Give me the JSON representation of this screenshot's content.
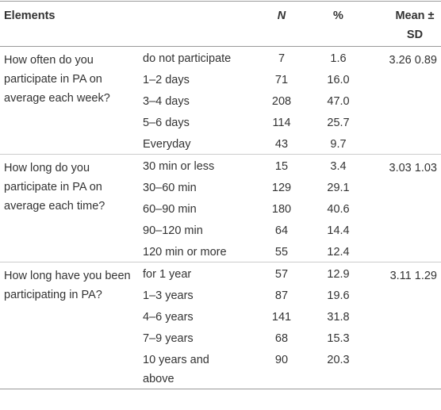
{
  "header": {
    "elements": "Elements",
    "n": "N",
    "percent": "%",
    "mean_sd": "Mean ± SD"
  },
  "groups": [
    {
      "question": "How often do you participate in PA on average each week?",
      "mean": "3.26",
      "sd": "0.89",
      "rows": [
        [
          "do not participate",
          "7",
          "1.6"
        ],
        [
          "1–2 days",
          "71",
          "16.0"
        ],
        [
          "3–4 days",
          "208",
          "47.0"
        ],
        [
          "5–6 days",
          "114",
          "25.7"
        ],
        [
          "Everyday",
          "43",
          "9.7"
        ]
      ]
    },
    {
      "question": "How long do you participate in PA on average each time?",
      "mean": "3.03",
      "sd": "1.03",
      "rows": [
        [
          "30 min or less",
          "15",
          "3.4"
        ],
        [
          "30–60 min",
          "129",
          "29.1"
        ],
        [
          "60–90 min",
          "180",
          "40.6"
        ],
        [
          "90–120 min",
          "64",
          "14.4"
        ],
        [
          "120 min or more",
          "55",
          "12.4"
        ]
      ]
    },
    {
      "question": "How long have you been participating in PA?",
      "mean": "3.11",
      "sd": "1.29",
      "rows": [
        [
          "for 1 year",
          "57",
          "12.9"
        ],
        [
          "1–3 years",
          "87",
          "19.6"
        ],
        [
          "4–6 years",
          "141",
          "31.8"
        ],
        [
          "7–9 years",
          "68",
          "15.3"
        ],
        [
          "10 years and above",
          "90",
          "20.3"
        ]
      ]
    }
  ]
}
